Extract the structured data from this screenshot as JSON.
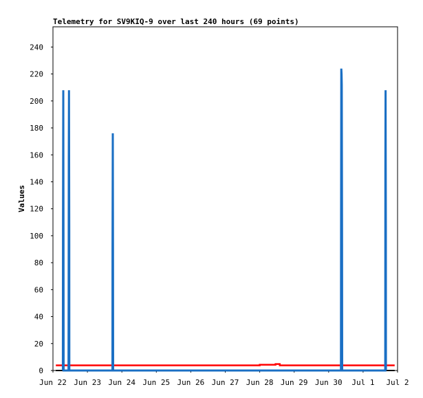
{
  "chart_data": {
    "type": "line",
    "title": "Telemetry for SV9KIQ-9 over last 240 hours (69 points)",
    "ylabel": "Values",
    "xlabel": "",
    "ylim": [
      0,
      255
    ],
    "xlim": [
      "2023-06-22T00:00",
      "2023-07-02T00:00"
    ],
    "y_ticks": [
      0,
      20,
      40,
      60,
      80,
      100,
      120,
      140,
      160,
      180,
      200,
      220,
      240
    ],
    "x_tick_labels": [
      "Jun 22",
      "Jun 23",
      "Jun 24",
      "Jun 25",
      "Jun 26",
      "Jun 27",
      "Jun 28",
      "Jun 29",
      "Jun 30",
      "Jul 1",
      "Jul 2"
    ],
    "grid": false,
    "series": [
      {
        "color": "#1a6fc4",
        "values": [
          [
            "2023-06-22T06:55",
            0
          ],
          [
            "2023-06-22T07:00",
            104
          ],
          [
            "2023-06-22T07:10",
            208
          ],
          [
            "2023-06-22T07:20",
            104
          ],
          [
            "2023-06-22T07:25",
            0
          ],
          [
            "2023-06-22T10:50",
            0
          ],
          [
            "2023-06-22T10:55",
            52
          ],
          [
            "2023-06-22T11:00",
            156
          ],
          [
            "2023-06-22T11:10",
            208
          ],
          [
            "2023-06-22T11:20",
            104
          ],
          [
            "2023-06-22T11:25",
            0
          ],
          [
            "2023-06-23T17:25",
            0
          ],
          [
            "2023-06-23T17:30",
            88
          ],
          [
            "2023-06-23T17:40",
            176
          ],
          [
            "2023-06-23T17:50",
            88
          ],
          [
            "2023-06-23T17:55",
            0
          ],
          [
            "2023-06-30T08:35",
            0
          ],
          [
            "2023-06-30T08:40",
            112
          ],
          [
            "2023-06-30T08:50",
            224
          ],
          [
            "2023-06-30T09:00",
            220
          ],
          [
            "2023-06-30T09:10",
            212
          ],
          [
            "2023-06-30T09:20",
            104
          ],
          [
            "2023-06-30T09:25",
            0
          ],
          [
            "2023-07-01T15:25",
            0
          ],
          [
            "2023-07-01T15:30",
            152
          ],
          [
            "2023-07-01T15:40",
            208
          ],
          [
            "2023-07-01T15:50",
            104
          ],
          [
            "2023-07-01T15:55",
            0
          ]
        ]
      },
      {
        "color": "#ff0000",
        "values": [
          [
            "2023-06-22T02:00",
            3.8
          ],
          [
            "2023-06-28T00:00",
            3.8
          ],
          [
            "2023-06-28T00:00",
            4.3
          ],
          [
            "2023-06-28T11:00",
            4.3
          ],
          [
            "2023-06-28T11:00",
            4.8
          ],
          [
            "2023-06-28T14:00",
            4.8
          ],
          [
            "2023-06-28T14:00",
            3.8
          ],
          [
            "2023-07-01T22:00",
            3.8
          ]
        ]
      },
      {
        "color": "#000000",
        "values": [
          [
            "2023-06-22T02:00",
            0
          ],
          [
            "2023-07-01T22:00",
            0
          ]
        ]
      }
    ]
  }
}
